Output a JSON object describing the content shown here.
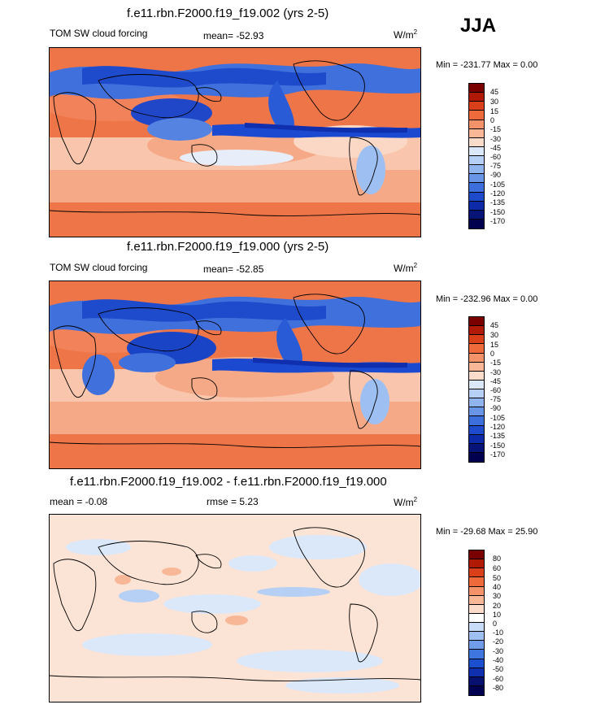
{
  "season": "JJA",
  "panels": [
    {
      "title": "f.e11.rbn.F2000.f19_f19.002 (yrs 2-5)",
      "left": "TOM SW cloud forcing",
      "mid": "mean= -52.93",
      "units": "W/m",
      "units_sup": "2",
      "minmax": "Min = -231.77 Max =   0.00",
      "ticks": [
        "45",
        "30",
        "15",
        "0",
        "-15",
        "-30",
        "-45",
        "-60",
        "-75",
        "-90",
        "-105",
        "-120",
        "-135",
        "-150",
        "-170"
      ]
    },
    {
      "title": "f.e11.rbn.F2000.f19_f19.000 (yrs 2-5)",
      "left": "TOM SW cloud forcing",
      "mid": "mean= -52.85",
      "units": "W/m",
      "units_sup": "2",
      "minmax": "Min = -232.96 Max =   0.00",
      "ticks": [
        "45",
        "30",
        "15",
        "0",
        "-15",
        "-30",
        "-45",
        "-60",
        "-75",
        "-90",
        "-105",
        "-120",
        "-135",
        "-150",
        "-170"
      ]
    },
    {
      "title": "f.e11.rbn.F2000.f19_f19.002 - f.e11.rbn.F2000.f19_f19.000",
      "left": "mean =  -0.08",
      "mid": "rmse =   5.23",
      "units": "W/m",
      "units_sup": "2",
      "minmax": "Min = -29.68 Max =  25.90",
      "ticks": [
        "80",
        "60",
        "50",
        "40",
        "30",
        "20",
        "10",
        "0",
        "-10",
        "-20",
        "-30",
        "-40",
        "-50",
        "-60",
        "-80"
      ]
    }
  ],
  "colors": {
    "scale": [
      "#7a0000",
      "#b01a05",
      "#d9401a",
      "#ef6a3a",
      "#f4936a",
      "#f8b897",
      "#fbdccb",
      "#ffffff",
      "#c9dcf7",
      "#9ebff2",
      "#6f9de9",
      "#3e75df",
      "#1b4fd0",
      "#0f2fae",
      "#06106e",
      "#000050"
    ],
    "full_scale": [
      "#7a0000",
      "#b01a05",
      "#d9401a",
      "#ef6a3a",
      "#f4936a",
      "#f8b897",
      "#fbdccb",
      "#dbe8fa",
      "#b5cff5",
      "#8fb4ee",
      "#6895e6",
      "#3d6fdc",
      "#1e4bcc",
      "#0d2aa8",
      "#061478",
      "#00004e"
    ]
  }
}
